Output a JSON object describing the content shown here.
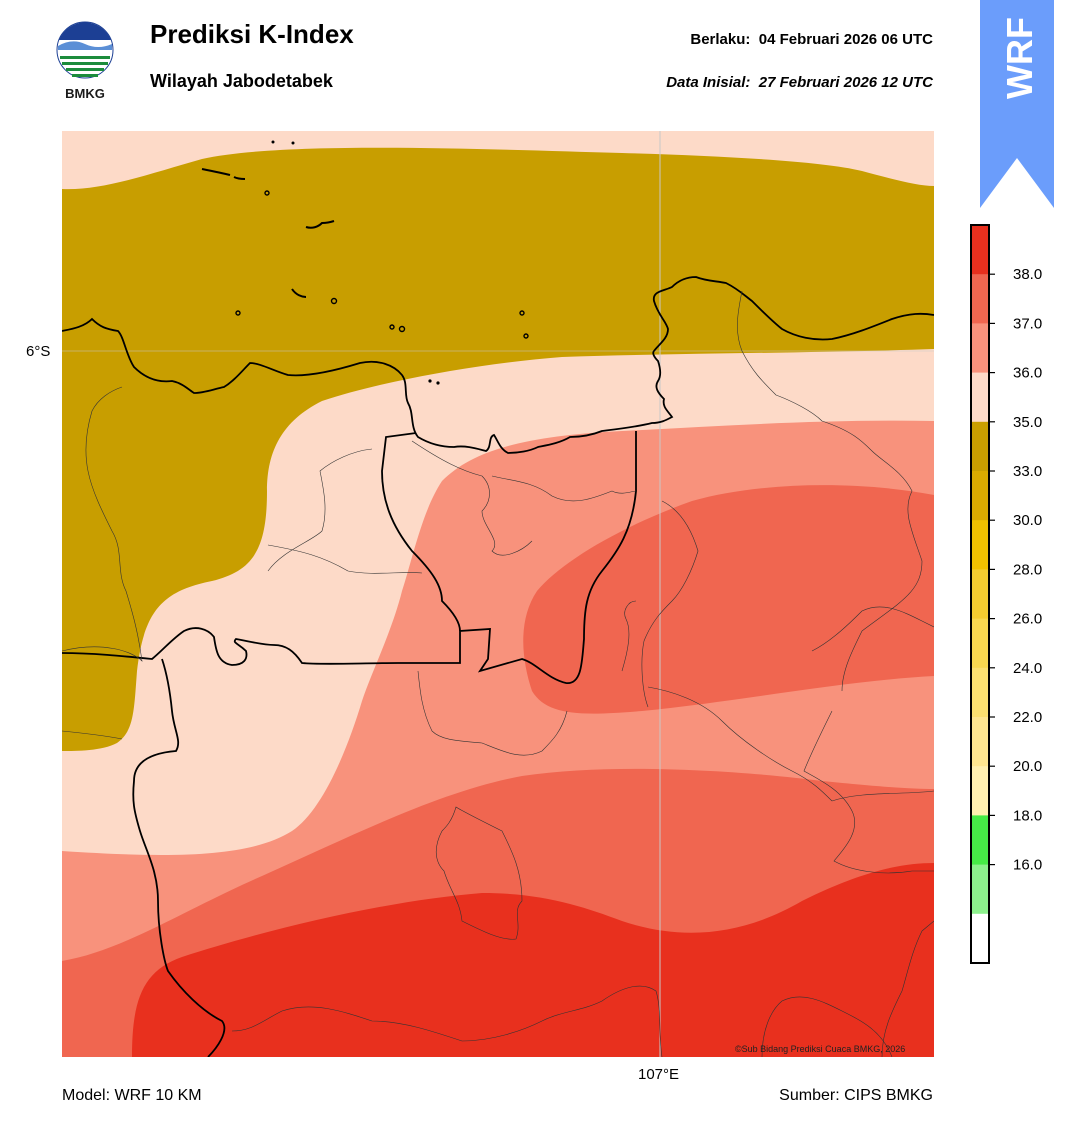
{
  "header": {
    "title": "Prediksi K-Index",
    "subtitle": "Wilayah Jabodetabek",
    "valid_label": "Berlaku:",
    "valid_value": "04 Februari 2026 06 UTC",
    "init_label": "Data Inisial:",
    "init_value": "27 Februari 2026 12 UTC"
  },
  "logo": {
    "text": "BMKG",
    "icon": "bmkg-logo-icon"
  },
  "badge": {
    "text": "WRF",
    "color": "#6b9dfb"
  },
  "map": {
    "lat_label": "6°S",
    "lon_label": "107°E",
    "copyright": "©Sub Bidang Prediksi Cuaca BMKG, 2026"
  },
  "footer": {
    "model": "Model: WRF 10 KM",
    "source": "Sumber: CIPS BMKG"
  },
  "colorbar": {
    "ticks": [
      "38.0",
      "37.0",
      "36.0",
      "35.0",
      "33.0",
      "30.0",
      "28.0",
      "26.0",
      "24.0",
      "22.0",
      "20.0",
      "18.0",
      "16.0"
    ],
    "levels": [
      {
        "color": "#e8301e"
      },
      {
        "color": "#f06650"
      },
      {
        "color": "#f8927c"
      },
      {
        "color": "#fddac8"
      },
      {
        "color": "#c89e00"
      },
      {
        "color": "#d9aa00"
      },
      {
        "color": "#f0c000"
      },
      {
        "color": "#f4cc30"
      },
      {
        "color": "#f8d850"
      },
      {
        "color": "#fbe070"
      },
      {
        "color": "#fee690"
      },
      {
        "color": "#fff0b0"
      },
      {
        "color": "#46ea46"
      },
      {
        "color": "#8cf08c"
      },
      {
        "color": "#ffffff"
      }
    ]
  }
}
